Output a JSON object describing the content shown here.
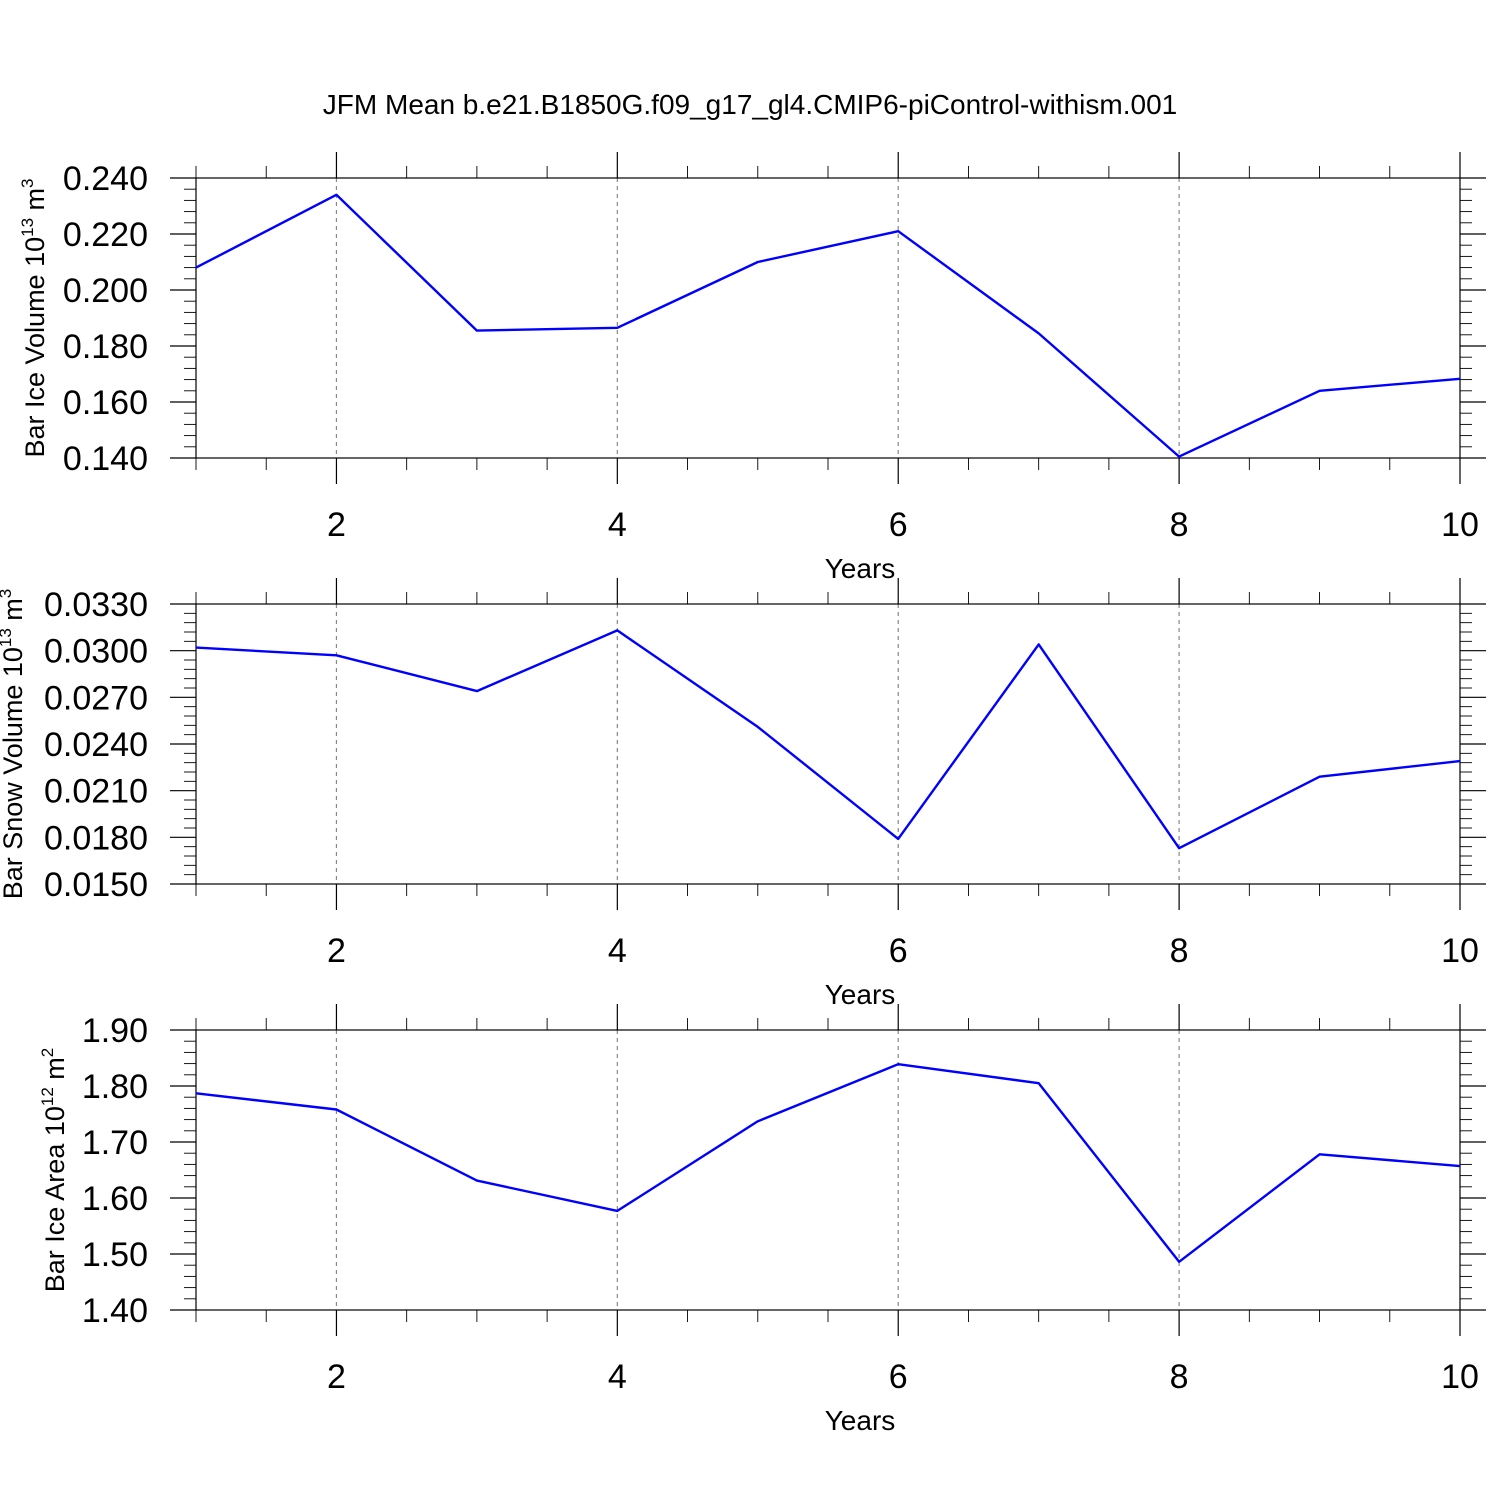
{
  "title": "JFM Mean b.e21.B1850G.f09_g17_gl4.CMIP6-piControl-withism.001",
  "chart_data": [
    {
      "type": "line",
      "ylabel_text": "Bar Ice Volume 10",
      "ylabel_exp": "13",
      "ylabel_unit": " m",
      "ylabel_unit_exp": "3",
      "xlabel": "Years",
      "x": [
        1,
        2,
        3,
        4,
        5,
        6,
        7,
        8,
        9,
        10
      ],
      "y": [
        0.208,
        0.234,
        0.1855,
        0.1865,
        0.21,
        0.221,
        0.1845,
        0.1405,
        0.164,
        0.1683
      ],
      "xlim": [
        1,
        10
      ],
      "ylim": [
        0.14,
        0.24
      ],
      "yticks": [
        "0.140",
        "0.160",
        "0.180",
        "0.200",
        "0.220",
        "0.240"
      ],
      "xticks": [
        "2",
        "4",
        "6",
        "8",
        "10"
      ],
      "line_color": "#0000ff",
      "grid": "vertical dashed at major x ticks"
    },
    {
      "type": "line",
      "ylabel_text": "Bar Snow Volume 10",
      "ylabel_exp": "13",
      "ylabel_unit": " m",
      "ylabel_unit_exp": "3",
      "xlabel": "Years",
      "x": [
        1,
        2,
        3,
        4,
        5,
        6,
        7,
        8,
        9,
        10
      ],
      "y": [
        0.0302,
        0.0297,
        0.0274,
        0.0313,
        0.0251,
        0.0179,
        0.0304,
        0.0173,
        0.0219,
        0.0229
      ],
      "xlim": [
        1,
        10
      ],
      "ylim": [
        0.015,
        0.033
      ],
      "yticks": [
        "0.0150",
        "0.0180",
        "0.0210",
        "0.0240",
        "0.0270",
        "0.0300",
        "0.0330"
      ],
      "xticks": [
        "2",
        "4",
        "6",
        "8",
        "10"
      ],
      "line_color": "#0000ff",
      "grid": "vertical dashed at major x ticks"
    },
    {
      "type": "line",
      "ylabel_text": "Bar Ice Area 10",
      "ylabel_exp": "12",
      "ylabel_unit": " m",
      "ylabel_unit_exp": "2",
      "xlabel": "Years",
      "x": [
        1,
        2,
        3,
        4,
        5,
        6,
        7,
        8,
        9,
        10
      ],
      "y": [
        1.787,
        1.758,
        1.631,
        1.577,
        1.737,
        1.839,
        1.805,
        1.486,
        1.678,
        1.657
      ],
      "xlim": [
        1,
        10
      ],
      "ylim": [
        1.4,
        1.9
      ],
      "yticks": [
        "1.40",
        "1.50",
        "1.60",
        "1.70",
        "1.80",
        "1.90"
      ],
      "xticks": [
        "2",
        "4",
        "6",
        "8",
        "10"
      ],
      "line_color": "#0000ff",
      "grid": "vertical dashed at major x ticks"
    }
  ]
}
